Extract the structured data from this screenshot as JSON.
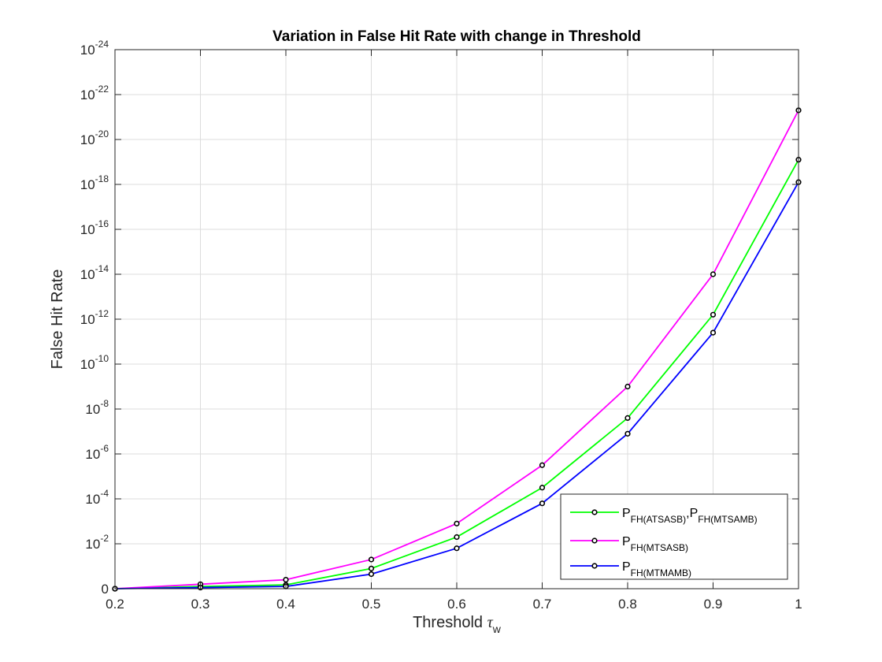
{
  "chart_data": {
    "type": "line",
    "title": "Variation in False Hit Rate with change in Threshold",
    "xlabel": {
      "main": "Threshold ",
      "symbol": "τ",
      "sub": "w"
    },
    "ylabel": "False Hit Rate",
    "xlim": [
      0.2,
      1.0
    ],
    "ylim": [
      0,
      24
    ],
    "y_scale": "log (tick labels 10^-k, bottom tick labeled 0)",
    "grid": true,
    "x_ticks": [
      "0.2",
      "0.3",
      "0.4",
      "0.5",
      "0.6",
      "0.7",
      "0.8",
      "0.9",
      "1"
    ],
    "y_ticks": [
      {
        "value": 0,
        "label": "0"
      },
      {
        "value": 2,
        "base": "10",
        "exp": "-2"
      },
      {
        "value": 4,
        "base": "10",
        "exp": "-4"
      },
      {
        "value": 6,
        "base": "10",
        "exp": "-6"
      },
      {
        "value": 8,
        "base": "10",
        "exp": "-8"
      },
      {
        "value": 10,
        "base": "10",
        "exp": "-10"
      },
      {
        "value": 12,
        "base": "10",
        "exp": "-12"
      },
      {
        "value": 14,
        "base": "10",
        "exp": "-14"
      },
      {
        "value": 16,
        "base": "10",
        "exp": "-16"
      },
      {
        "value": 18,
        "base": "10",
        "exp": "-18"
      },
      {
        "value": 20,
        "base": "10",
        "exp": "-20"
      },
      {
        "value": 22,
        "base": "10",
        "exp": "-22"
      },
      {
        "value": 24,
        "base": "10",
        "exp": "-24"
      }
    ],
    "x": [
      0.2,
      0.3,
      0.4,
      0.5,
      0.6,
      0.7,
      0.8,
      0.9,
      1.0
    ],
    "legend_position": "bottom-right",
    "series": [
      {
        "legend": [
          {
            "base": "P",
            "sub": "FH(ATSASB)"
          },
          {
            "base": ",P",
            "sub": "FH(MTSAMB)"
          }
        ],
        "color": "#00ff00",
        "values": [
          0,
          0.1,
          0.17,
          0.9,
          2.3,
          4.5,
          7.6,
          12.2,
          19.1
        ]
      },
      {
        "legend": [
          {
            "base": "P",
            "sub": "FH(MTSASB)"
          }
        ],
        "color": "#ff00ff",
        "values": [
          0,
          0.2,
          0.4,
          1.3,
          2.9,
          5.5,
          9.0,
          14.0,
          21.3
        ]
      },
      {
        "legend": [
          {
            "base": "P",
            "sub": "FH(MTMAMB)"
          }
        ],
        "color": "#0000ff",
        "values": [
          0,
          0.05,
          0.1,
          0.65,
          1.8,
          3.8,
          6.9,
          11.4,
          18.1
        ]
      }
    ]
  }
}
